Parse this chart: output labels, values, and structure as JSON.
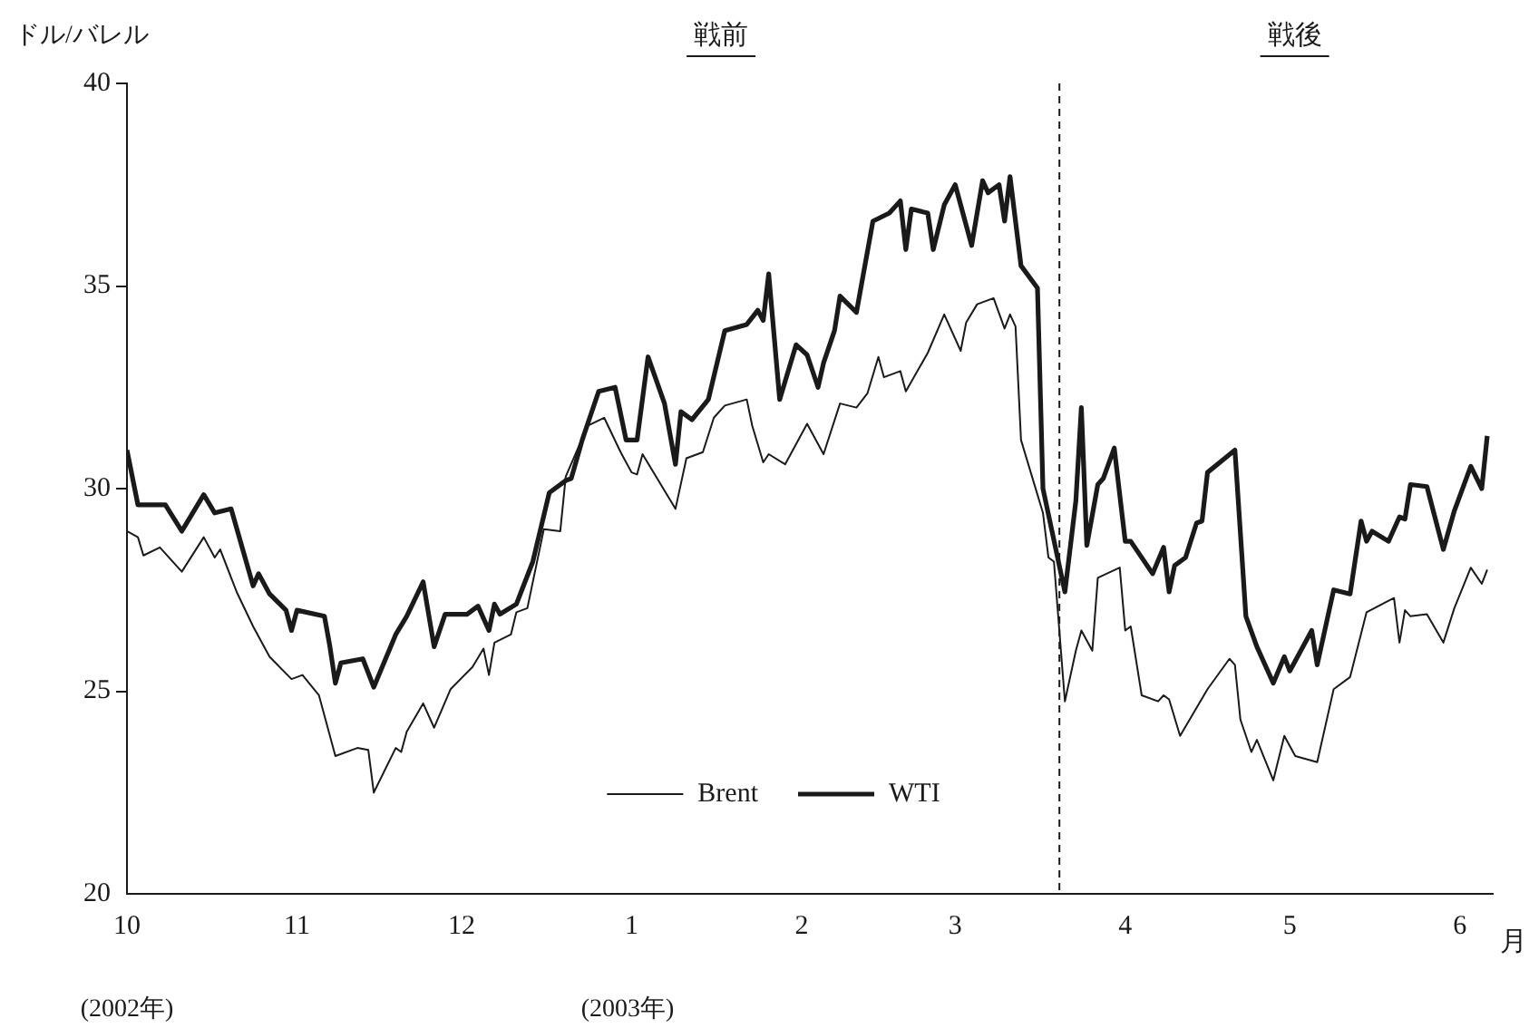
{
  "chart_data": {
    "type": "line",
    "ylabel": "ドル/バレル",
    "xlabel": "月",
    "annotations": [
      "戦前",
      "戦後",
      "(2002年)",
      "(2003年)"
    ],
    "xlim": [
      "2002-10-01",
      "2003-06-07"
    ],
    "xticks": [
      {
        "value": "2002-10-01",
        "label": "10"
      },
      {
        "value": "2002-11-01",
        "label": "11"
      },
      {
        "value": "2002-12-01",
        "label": "12"
      },
      {
        "value": "2003-01-01",
        "label": "1"
      },
      {
        "value": "2003-02-01",
        "label": "2"
      },
      {
        "value": "2003-03-01",
        "label": "3"
      },
      {
        "value": "2003-04-01",
        "label": "4"
      },
      {
        "value": "2003-05-01",
        "label": "5"
      },
      {
        "value": "2003-06-01",
        "label": "6"
      }
    ],
    "ylim": [
      20,
      40
    ],
    "yticks": [
      20,
      25,
      30,
      35,
      40
    ],
    "grid": false,
    "legend": "bottom",
    "marker": "none",
    "line_style": "solid",
    "ref_lines": [
      {
        "axis": "x",
        "value": "2003-03-20",
        "line_style": "dashed"
      }
    ],
    "series": [
      {
        "name": "Brent",
        "color": "#1a1a1a",
        "x": [
          "2002-10-01",
          "2002-10-03",
          "2002-10-04",
          "2002-10-07",
          "2002-10-11",
          "2002-10-15",
          "2002-10-17",
          "2002-10-18",
          "2002-10-21",
          "2002-10-24",
          "2002-10-27",
          "2002-10-31",
          "2002-11-02",
          "2002-11-05",
          "2002-11-08",
          "2002-11-12",
          "2002-11-14",
          "2002-11-15",
          "2002-11-19",
          "2002-11-20",
          "2002-11-21",
          "2002-11-24",
          "2002-11-26",
          "2002-11-29",
          "2002-12-03",
          "2002-12-05",
          "2002-12-06",
          "2002-12-07",
          "2002-12-10",
          "2002-12-11",
          "2002-12-13",
          "2002-12-16",
          "2002-12-19",
          "2002-12-20",
          "2002-12-24",
          "2002-12-27",
          "2002-12-30",
          "2003-01-01",
          "2003-01-02",
          "2003-01-03",
          "2003-01-09",
          "2003-01-11",
          "2003-01-14",
          "2003-01-16",
          "2003-01-18",
          "2003-01-22",
          "2003-01-23",
          "2003-01-25",
          "2003-01-26",
          "2003-01-29",
          "2003-02-02",
          "2003-02-05",
          "2003-02-08",
          "2003-02-11",
          "2003-02-13",
          "2003-02-15",
          "2003-02-16",
          "2003-02-19",
          "2003-02-20",
          "2003-02-24",
          "2003-02-27",
          "2003-03-02",
          "2003-03-03",
          "2003-03-05",
          "2003-03-08",
          "2003-03-10",
          "2003-03-11",
          "2003-03-12",
          "2003-03-13",
          "2003-03-15",
          "2003-03-17",
          "2003-03-18",
          "2003-03-19",
          "2003-03-21",
          "2003-03-23",
          "2003-03-24",
          "2003-03-26",
          "2003-03-27",
          "2003-03-31",
          "2003-04-01",
          "2003-04-02",
          "2003-04-04",
          "2003-04-07",
          "2003-04-08",
          "2003-04-09",
          "2003-04-11",
          "2003-04-16",
          "2003-04-20",
          "2003-04-21",
          "2003-04-22",
          "2003-04-24",
          "2003-04-25",
          "2003-04-28",
          "2003-04-30",
          "2003-05-02",
          "2003-05-06",
          "2003-05-09",
          "2003-05-12",
          "2003-05-15",
          "2003-05-20",
          "2003-05-21",
          "2003-05-22",
          "2003-05-23",
          "2003-05-26",
          "2003-05-29",
          "2003-05-31",
          "2003-06-03",
          "2003-06-05",
          "2003-06-06"
        ],
        "values": [
          28.95,
          28.8,
          28.35,
          28.55,
          27.95,
          28.8,
          28.3,
          28.5,
          27.45,
          26.6,
          25.85,
          25.3,
          25.4,
          24.9,
          23.4,
          23.6,
          23.55,
          22.5,
          23.6,
          23.5,
          24.0,
          24.7,
          24.1,
          25.05,
          25.6,
          26.05,
          25.4,
          26.2,
          26.4,
          26.95,
          27.05,
          29.0,
          28.95,
          30.3,
          31.55,
          31.75,
          30.9,
          30.4,
          30.35,
          30.85,
          29.5,
          30.75,
          30.9,
          31.75,
          32.05,
          32.2,
          31.55,
          30.65,
          30.85,
          30.6,
          31.6,
          30.85,
          32.1,
          32.0,
          32.35,
          33.25,
          32.75,
          32.9,
          32.4,
          33.35,
          34.3,
          33.4,
          34.1,
          34.55,
          34.7,
          33.95,
          34.3,
          34.0,
          31.2,
          30.3,
          29.4,
          28.3,
          28.2,
          24.75,
          26.0,
          26.5,
          26.0,
          27.8,
          28.05,
          26.5,
          26.6,
          24.9,
          24.75,
          24.9,
          24.8,
          23.9,
          25.05,
          25.8,
          25.65,
          24.3,
          23.5,
          23.8,
          22.8,
          23.9,
          23.4,
          23.25,
          25.05,
          25.35,
          26.95,
          27.3,
          26.2,
          27.0,
          26.85,
          26.9,
          26.2,
          27.05,
          28.05,
          27.65,
          28.0
        ]
      },
      {
        "name": "WTI",
        "color": "#1a1a1a",
        "x": [
          "2002-10-01",
          "2002-10-03",
          "2002-10-08",
          "2002-10-11",
          "2002-10-15",
          "2002-10-17",
          "2002-10-20",
          "2002-10-24",
          "2002-10-25",
          "2002-10-27",
          "2002-10-30",
          "2002-10-31",
          "2002-11-01",
          "2002-11-06",
          "2002-11-07",
          "2002-11-08",
          "2002-11-09",
          "2002-11-13",
          "2002-11-15",
          "2002-11-19",
          "2002-11-21",
          "2002-11-24",
          "2002-11-26",
          "2002-11-28",
          "2002-12-02",
          "2002-12-04",
          "2002-12-06",
          "2002-12-07",
          "2002-12-08",
          "2002-12-11",
          "2002-12-12",
          "2002-12-14",
          "2002-12-17",
          "2002-12-20",
          "2002-12-21",
          "2002-12-23",
          "2002-12-26",
          "2002-12-29",
          "2002-12-31",
          "2003-01-02",
          "2003-01-04",
          "2003-01-07",
          "2003-01-09",
          "2003-01-10",
          "2003-01-12",
          "2003-01-15",
          "2003-01-18",
          "2003-01-22",
          "2003-01-24",
          "2003-01-25",
          "2003-01-26",
          "2003-01-28",
          "2003-01-31",
          "2003-02-02",
          "2003-02-04",
          "2003-02-05",
          "2003-02-07",
          "2003-02-08",
          "2003-02-11",
          "2003-02-14",
          "2003-02-17",
          "2003-02-19",
          "2003-02-20",
          "2003-02-21",
          "2003-02-24",
          "2003-02-25",
          "2003-02-27",
          "2003-03-01",
          "2003-03-03",
          "2003-03-04",
          "2003-03-06",
          "2003-03-07",
          "2003-03-09",
          "2003-03-10",
          "2003-03-11",
          "2003-03-13",
          "2003-03-16",
          "2003-03-17",
          "2003-03-21",
          "2003-03-23",
          "2003-03-24",
          "2003-03-25",
          "2003-03-27",
          "2003-03-28",
          "2003-03-30",
          "2003-04-01",
          "2003-04-02",
          "2003-04-06",
          "2003-04-08",
          "2003-04-09",
          "2003-04-10",
          "2003-04-12",
          "2003-04-14",
          "2003-04-15",
          "2003-04-16",
          "2003-04-21",
          "2003-04-23",
          "2003-04-25",
          "2003-04-28",
          "2003-04-30",
          "2003-05-01",
          "2003-05-05",
          "2003-05-06",
          "2003-05-09",
          "2003-05-12",
          "2003-05-14",
          "2003-05-15",
          "2003-05-16",
          "2003-05-19",
          "2003-05-21",
          "2003-05-22",
          "2003-05-23",
          "2003-05-26",
          "2003-05-29",
          "2003-05-31",
          "2003-06-03",
          "2003-06-05",
          "2003-06-06"
        ],
        "values": [
          30.95,
          29.6,
          29.6,
          28.95,
          29.85,
          29.4,
          29.5,
          27.6,
          27.9,
          27.4,
          27.0,
          26.5,
          27.0,
          26.85,
          26.1,
          25.2,
          25.7,
          25.8,
          25.1,
          26.4,
          26.85,
          27.7,
          26.1,
          26.9,
          26.9,
          27.1,
          26.5,
          27.15,
          26.9,
          27.15,
          27.5,
          28.2,
          29.9,
          30.2,
          30.25,
          31.2,
          32.4,
          32.5,
          31.2,
          31.2,
          33.25,
          32.1,
          30.6,
          31.9,
          31.7,
          32.2,
          33.9,
          34.05,
          34.4,
          34.15,
          35.3,
          32.2,
          33.55,
          33.3,
          32.5,
          33.1,
          33.9,
          34.75,
          34.35,
          36.6,
          36.8,
          37.1,
          35.9,
          36.9,
          36.8,
          35.9,
          37.0,
          37.5,
          36.5,
          36.0,
          37.6,
          37.3,
          37.5,
          36.6,
          37.7,
          35.5,
          34.95,
          30.0,
          27.45,
          29.7,
          32.0,
          28.6,
          30.1,
          30.25,
          31.0,
          28.7,
          28.7,
          27.9,
          28.55,
          27.45,
          28.1,
          28.3,
          29.15,
          29.2,
          30.4,
          30.95,
          26.85,
          26.1,
          25.2,
          25.85,
          25.5,
          26.5,
          25.65,
          27.5,
          27.4,
          29.2,
          28.7,
          28.95,
          28.7,
          29.3,
          29.25,
          30.1,
          30.05,
          28.5,
          29.45,
          30.55,
          30.0,
          31.3
        ]
      }
    ]
  }
}
